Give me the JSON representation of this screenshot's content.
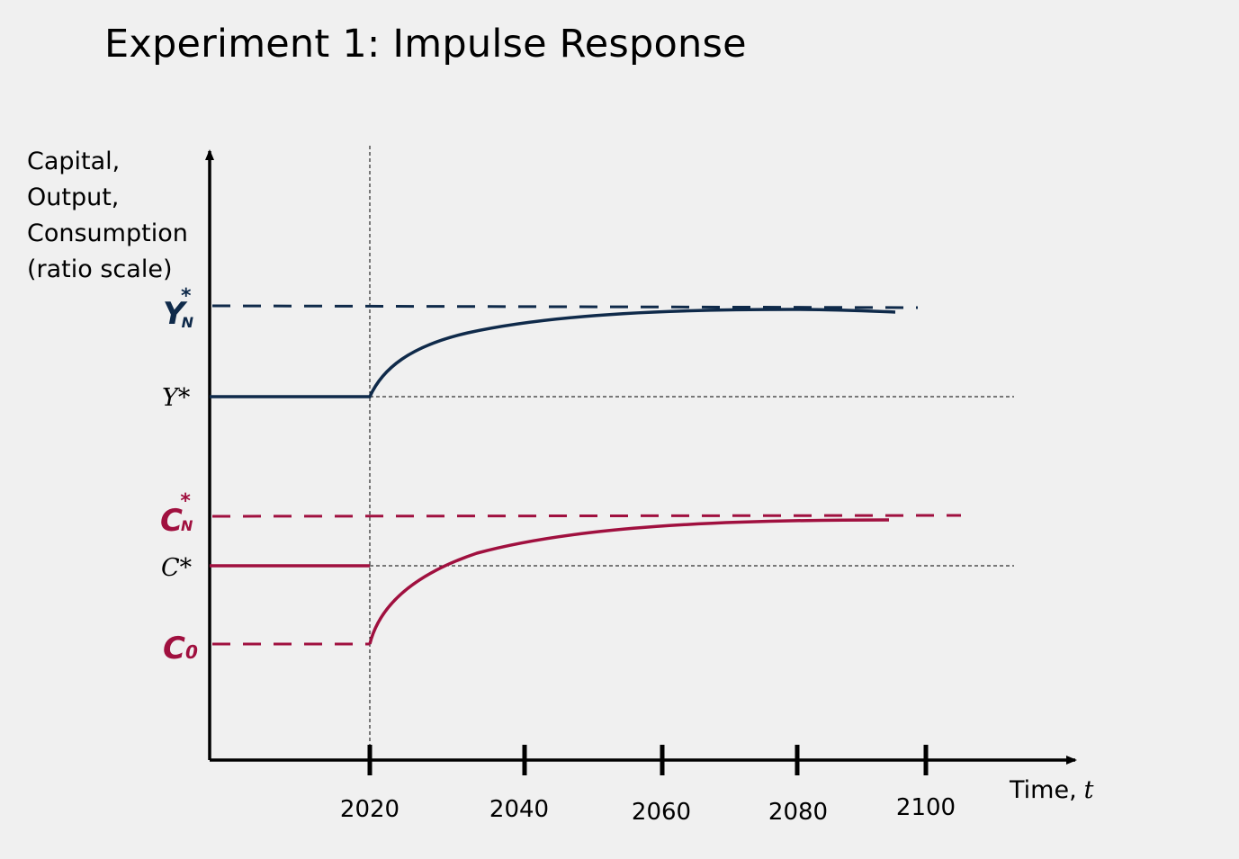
{
  "title": "Experiment 1: Impulse Response",
  "y_axis_label": "Capital,\nOutput,\nConsumption\n(ratio scale)",
  "x_axis_label": "Time,",
  "x_axis_var": "t",
  "ticks": [
    "2020",
    "2040",
    "2060",
    "2080",
    "2100"
  ],
  "levels": {
    "y_star": "Y*",
    "c_star": "C*",
    "y_n_star": "Y",
    "y_n_sub": "N",
    "c_n_star": "C",
    "c_n_sub": "N",
    "c0": "C",
    "c0_sub": "0",
    "star": "*"
  },
  "colors": {
    "output": "#0f2a4a",
    "consumption": "#a0103f",
    "axis": "#000000"
  }
}
